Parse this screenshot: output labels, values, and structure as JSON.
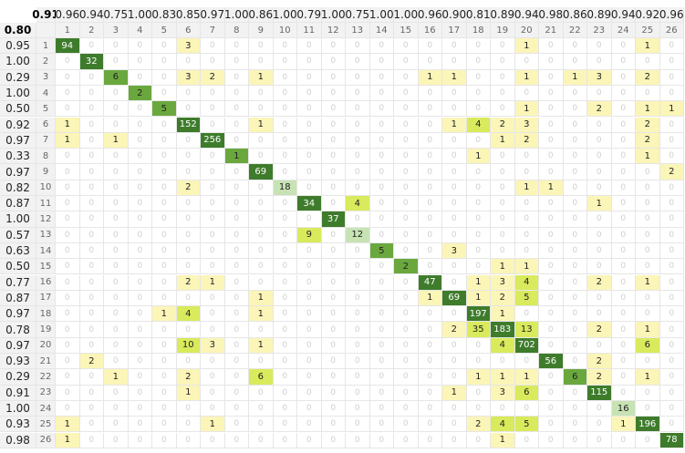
{
  "chart_data": {
    "type": "heatmap",
    "overall_precision": "0.91",
    "overall_recall": "0.80",
    "labels": [
      "1",
      "2",
      "3",
      "4",
      "5",
      "6",
      "7",
      "8",
      "9",
      "10",
      "11",
      "12",
      "13",
      "14",
      "15",
      "16",
      "17",
      "18",
      "19",
      "20",
      "21",
      "22",
      "23",
      "24",
      "25",
      "26"
    ],
    "column_metric": [
      "0.96",
      "0.94",
      "0.75",
      "1.00",
      "0.83",
      "0.85",
      "0.97",
      "1.00",
      "0.86",
      "1.00",
      "0.79",
      "1.00",
      "0.75",
      "1.00",
      "1.00",
      "0.96",
      "0.90",
      "0.81",
      "0.89",
      "0.94",
      "0.98",
      "0.86",
      "0.89",
      "0.94",
      "0.92",
      "0.96"
    ],
    "row_metric": [
      "0.95",
      "1.00",
      "0.29",
      "1.00",
      "0.50",
      "0.92",
      "0.97",
      "0.33",
      "0.97",
      "0.82",
      "0.87",
      "1.00",
      "0.57",
      "0.63",
      "0.50",
      "0.77",
      "0.87",
      "0.97",
      "0.78",
      "0.97",
      "0.93",
      "0.29",
      "0.91",
      "1.00",
      "0.93",
      "0.98"
    ],
    "matrix": [
      [
        94,
        0,
        0,
        0,
        0,
        3,
        0,
        0,
        0,
        0,
        0,
        0,
        0,
        0,
        0,
        0,
        0,
        0,
        0,
        1,
        0,
        0,
        0,
        0,
        1,
        0
      ],
      [
        0,
        32,
        0,
        0,
        0,
        0,
        0,
        0,
        0,
        0,
        0,
        0,
        0,
        0,
        0,
        0,
        0,
        0,
        0,
        0,
        0,
        0,
        0,
        0,
        0,
        0
      ],
      [
        0,
        0,
        6,
        0,
        0,
        3,
        2,
        0,
        1,
        0,
        0,
        0,
        0,
        0,
        0,
        1,
        1,
        0,
        0,
        1,
        0,
        1,
        3,
        0,
        2,
        0
      ],
      [
        0,
        0,
        0,
        2,
        0,
        0,
        0,
        0,
        0,
        0,
        0,
        0,
        0,
        0,
        0,
        0,
        0,
        0,
        0,
        0,
        0,
        0,
        0,
        0,
        0,
        0
      ],
      [
        0,
        0,
        0,
        0,
        5,
        0,
        0,
        0,
        0,
        0,
        0,
        0,
        0,
        0,
        0,
        0,
        0,
        0,
        0,
        1,
        0,
        0,
        2,
        0,
        1,
        1
      ],
      [
        1,
        0,
        0,
        0,
        0,
        152,
        0,
        0,
        1,
        0,
        0,
        0,
        0,
        0,
        0,
        0,
        1,
        4,
        2,
        3,
        0,
        0,
        0,
        0,
        2,
        0
      ],
      [
        1,
        0,
        1,
        0,
        0,
        0,
        256,
        0,
        0,
        0,
        0,
        0,
        0,
        0,
        0,
        0,
        0,
        0,
        1,
        2,
        0,
        0,
        0,
        0,
        2,
        0
      ],
      [
        0,
        0,
        0,
        0,
        0,
        0,
        0,
        1,
        0,
        0,
        0,
        0,
        0,
        0,
        0,
        0,
        0,
        1,
        0,
        0,
        0,
        0,
        0,
        0,
        1,
        0
      ],
      [
        0,
        0,
        0,
        0,
        0,
        0,
        0,
        0,
        69,
        0,
        0,
        0,
        0,
        0,
        0,
        0,
        0,
        0,
        0,
        0,
        0,
        0,
        0,
        0,
        0,
        2
      ],
      [
        0,
        0,
        0,
        0,
        0,
        2,
        0,
        0,
        0,
        18,
        0,
        0,
        0,
        0,
        0,
        0,
        0,
        0,
        0,
        1,
        1,
        0,
        0,
        0,
        0,
        0
      ],
      [
        0,
        0,
        0,
        0,
        0,
        0,
        0,
        0,
        0,
        0,
        34,
        0,
        4,
        0,
        0,
        0,
        0,
        0,
        0,
        0,
        0,
        0,
        1,
        0,
        0,
        0
      ],
      [
        0,
        0,
        0,
        0,
        0,
        0,
        0,
        0,
        0,
        0,
        0,
        37,
        0,
        0,
        0,
        0,
        0,
        0,
        0,
        0,
        0,
        0,
        0,
        0,
        0,
        0
      ],
      [
        0,
        0,
        0,
        0,
        0,
        0,
        0,
        0,
        0,
        0,
        9,
        0,
        12,
        0,
        0,
        0,
        0,
        0,
        0,
        0,
        0,
        0,
        0,
        0,
        0,
        0
      ],
      [
        0,
        0,
        0,
        0,
        0,
        0,
        0,
        0,
        0,
        0,
        0,
        0,
        0,
        5,
        0,
        0,
        3,
        0,
        0,
        0,
        0,
        0,
        0,
        0,
        0,
        0
      ],
      [
        0,
        0,
        0,
        0,
        0,
        0,
        0,
        0,
        0,
        0,
        0,
        0,
        0,
        0,
        2,
        0,
        0,
        0,
        1,
        1,
        0,
        0,
        0,
        0,
        0,
        0
      ],
      [
        0,
        0,
        0,
        0,
        0,
        2,
        1,
        0,
        0,
        0,
        0,
        0,
        0,
        0,
        0,
        47,
        0,
        1,
        3,
        4,
        0,
        0,
        2,
        0,
        1,
        0
      ],
      [
        0,
        0,
        0,
        0,
        0,
        0,
        0,
        0,
        1,
        0,
        0,
        0,
        0,
        0,
        0,
        1,
        69,
        1,
        2,
        5,
        0,
        0,
        0,
        0,
        0,
        0
      ],
      [
        0,
        0,
        0,
        0,
        1,
        4,
        0,
        0,
        1,
        0,
        0,
        0,
        0,
        0,
        0,
        0,
        0,
        197,
        1,
        0,
        0,
        0,
        0,
        0,
        0,
        0
      ],
      [
        0,
        0,
        0,
        0,
        0,
        0,
        0,
        0,
        0,
        0,
        0,
        0,
        0,
        0,
        0,
        0,
        2,
        35,
        183,
        13,
        0,
        0,
        2,
        0,
        1,
        0
      ],
      [
        0,
        0,
        0,
        0,
        0,
        10,
        3,
        0,
        1,
        0,
        0,
        0,
        0,
        0,
        0,
        0,
        0,
        0,
        4,
        702,
        0,
        0,
        0,
        0,
        6,
        0
      ],
      [
        0,
        2,
        0,
        0,
        0,
        0,
        0,
        0,
        0,
        0,
        0,
        0,
        0,
        0,
        0,
        0,
        0,
        0,
        0,
        0,
        56,
        0,
        2,
        0,
        0,
        0
      ],
      [
        0,
        0,
        1,
        0,
        0,
        2,
        0,
        0,
        6,
        0,
        0,
        0,
        0,
        0,
        0,
        0,
        0,
        1,
        1,
        1,
        0,
        6,
        2,
        0,
        1,
        0
      ],
      [
        0,
        0,
        0,
        0,
        0,
        1,
        0,
        0,
        0,
        0,
        0,
        0,
        0,
        0,
        0,
        0,
        1,
        0,
        3,
        6,
        0,
        0,
        115,
        0,
        0,
        0
      ],
      [
        0,
        0,
        0,
        0,
        0,
        0,
        0,
        0,
        0,
        0,
        0,
        0,
        0,
        0,
        0,
        0,
        0,
        0,
        0,
        0,
        0,
        0,
        0,
        16,
        0,
        0
      ],
      [
        1,
        0,
        0,
        0,
        0,
        0,
        1,
        0,
        0,
        0,
        0,
        0,
        0,
        0,
        0,
        0,
        0,
        2,
        4,
        5,
        0,
        0,
        0,
        1,
        196,
        0
      ],
      [
        1,
        0,
        0,
        0,
        0,
        0,
        0,
        0,
        0,
        0,
        0,
        0,
        0,
        0,
        0,
        0,
        0,
        0,
        1,
        0,
        0,
        0,
        0,
        0,
        0,
        78
      ]
    ],
    "colors": {
      "diag_dark": "#3e7c2c",
      "diag_mid": "#6aa83e",
      "diag_light": "#c7e3b4",
      "off_mid": "#d9ea5c",
      "off_light": "#fbf5b8",
      "empty": "#ffffff",
      "grid": "#e6e6e6",
      "header_bg": "#f2f2f2"
    }
  }
}
